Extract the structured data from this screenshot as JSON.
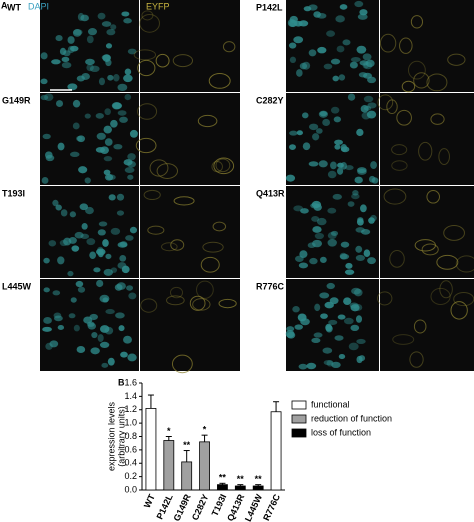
{
  "figure": {
    "panel_a": "A",
    "panel_b": "B",
    "channels": [
      "DAPI",
      "EYFP"
    ],
    "left_rows": [
      "WT",
      "G149R",
      "T193I",
      "L445W"
    ],
    "right_rows": [
      "P142L",
      "C282Y",
      "Q413R",
      "R776C"
    ]
  },
  "chart_data": {
    "type": "bar",
    "ylabel": [
      "expression levels",
      "(arbitrary units)"
    ],
    "categories": [
      "WT",
      "P142L",
      "G149R",
      "C282Y",
      "T193I",
      "Q413R",
      "L445W",
      "R776C"
    ],
    "values": [
      1.22,
      0.74,
      0.42,
      0.72,
      0.08,
      0.06,
      0.06,
      1.17
    ],
    "errors": [
      0.2,
      0.06,
      0.17,
      0.1,
      0.02,
      0.02,
      0.02,
      0.15
    ],
    "significance": [
      null,
      "*",
      "**",
      "*",
      "**",
      "**",
      "**",
      null
    ],
    "groups": [
      {
        "name": "functional",
        "color": "#ffffff"
      },
      {
        "name": "reduction of function",
        "color": "#a0a0a0"
      },
      {
        "name": "loss of function",
        "color": "#000000"
      }
    ],
    "category_group": [
      0,
      1,
      1,
      1,
      2,
      2,
      2,
      0
    ],
    "ylim": [
      0,
      1.6
    ],
    "yticks": [
      {
        "value": 0,
        "label": "0.0"
      },
      {
        "value": 0.2,
        "label": "0.2"
      },
      {
        "value": 0.4,
        "label": "0.4"
      },
      {
        "value": 0.6,
        "label": "0.6"
      },
      {
        "value": 0.8,
        "label": "0.8"
      },
      {
        "value": 1.0,
        "label": "1.0"
      },
      {
        "value": 1.2,
        "label": "1.2"
      },
      {
        "value": 1.4,
        "label": "1.4"
      },
      {
        "value": 1.6,
        "label": "1.6"
      }
    ]
  }
}
